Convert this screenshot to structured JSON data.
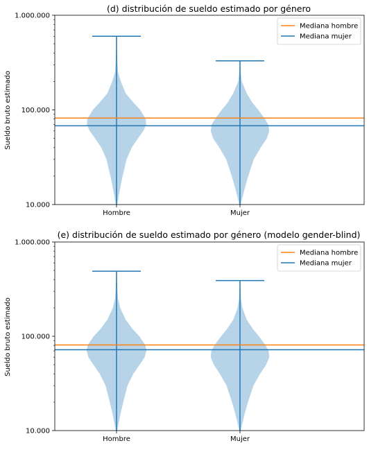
{
  "chart_data": [
    {
      "type": "violin",
      "title": "(d) distribución de sueldo estimado por género",
      "xlabel": "",
      "ylabel": "Sueldo bruto estimado",
      "yscale": "log",
      "ylim": [
        10000,
        1000000
      ],
      "yticks": [
        10000,
        100000,
        1000000
      ],
      "ytick_labels": [
        "10.000",
        "100.000",
        "1.000.000"
      ],
      "categories": [
        "Hombre",
        "Mujer"
      ],
      "series": [
        {
          "category": "Hombre",
          "min": 10000,
          "max": 600000,
          "mode": 70000,
          "profile": [
            [
              10000,
              0.02
            ],
            [
              15000,
              0.12
            ],
            [
              20000,
              0.2
            ],
            [
              30000,
              0.33
            ],
            [
              40000,
              0.5
            ],
            [
              50000,
              0.7
            ],
            [
              60000,
              0.88
            ],
            [
              70000,
              0.97
            ],
            [
              80000,
              0.96
            ],
            [
              100000,
              0.78
            ],
            [
              120000,
              0.55
            ],
            [
              150000,
              0.3
            ],
            [
              200000,
              0.14
            ],
            [
              250000,
              0.05
            ],
            [
              300000,
              0.03
            ],
            [
              400000,
              0.015
            ],
            [
              600000,
              0.005
            ]
          ]
        },
        {
          "category": "Mujer",
          "min": 10000,
          "max": 330000,
          "mode": 60000,
          "profile": [
            [
              10000,
              0.02
            ],
            [
              15000,
              0.16
            ],
            [
              20000,
              0.27
            ],
            [
              30000,
              0.45
            ],
            [
              40000,
              0.68
            ],
            [
              50000,
              0.88
            ],
            [
              60000,
              0.96
            ],
            [
              70000,
              0.93
            ],
            [
              80000,
              0.82
            ],
            [
              100000,
              0.6
            ],
            [
              120000,
              0.4
            ],
            [
              150000,
              0.22
            ],
            [
              200000,
              0.06
            ],
            [
              250000,
              0.02
            ],
            [
              330000,
              0.005
            ]
          ]
        }
      ],
      "median_lines": [
        {
          "name": "Mediana hombre",
          "value": 82000,
          "color": "#ff7f0e"
        },
        {
          "name": "Mediana mujer",
          "value": 68000,
          "color": "#1f77b4"
        }
      ],
      "legend": "top-right",
      "grid": false
    },
    {
      "type": "violin",
      "title": "(e) distribución de sueldo estimado por género (modelo gender-blind)",
      "xlabel": "",
      "ylabel": "Sueldo bruto estimado",
      "yscale": "log",
      "ylim": [
        10000,
        1000000
      ],
      "yticks": [
        10000,
        100000,
        1000000
      ],
      "ytick_labels": [
        "10.000",
        "100.000",
        "1.000.000"
      ],
      "categories": [
        "Hombre",
        "Mujer"
      ],
      "series": [
        {
          "category": "Hombre",
          "min": 10000,
          "max": 490000,
          "mode": 70000,
          "profile": [
            [
              10000,
              0.02
            ],
            [
              15000,
              0.13
            ],
            [
              20000,
              0.22
            ],
            [
              30000,
              0.36
            ],
            [
              40000,
              0.55
            ],
            [
              50000,
              0.76
            ],
            [
              60000,
              0.92
            ],
            [
              70000,
              0.98
            ],
            [
              80000,
              0.95
            ],
            [
              100000,
              0.75
            ],
            [
              120000,
              0.52
            ],
            [
              150000,
              0.3
            ],
            [
              200000,
              0.12
            ],
            [
              250000,
              0.05
            ],
            [
              300000,
              0.03
            ],
            [
              490000,
              0.005
            ]
          ]
        },
        {
          "category": "Mujer",
          "min": 10000,
          "max": 390000,
          "mode": 60000,
          "profile": [
            [
              10000,
              0.02
            ],
            [
              15000,
              0.15
            ],
            [
              20000,
              0.26
            ],
            [
              30000,
              0.44
            ],
            [
              40000,
              0.66
            ],
            [
              50000,
              0.86
            ],
            [
              60000,
              0.96
            ],
            [
              70000,
              0.94
            ],
            [
              80000,
              0.84
            ],
            [
              100000,
              0.62
            ],
            [
              120000,
              0.42
            ],
            [
              150000,
              0.22
            ],
            [
              200000,
              0.08
            ],
            [
              250000,
              0.03
            ],
            [
              390000,
              0.005
            ]
          ]
        }
      ],
      "median_lines": [
        {
          "name": "Mediana hombre",
          "value": 81000,
          "color": "#ff7f0e"
        },
        {
          "name": "Mediana mujer",
          "value": 72000,
          "color": "#1f77b4"
        }
      ],
      "legend": "top-right",
      "grid": false
    }
  ],
  "colors": {
    "violin_fill": "#b6d3e8",
    "violin_line": "#1f77b4",
    "axes": "#000000"
  }
}
